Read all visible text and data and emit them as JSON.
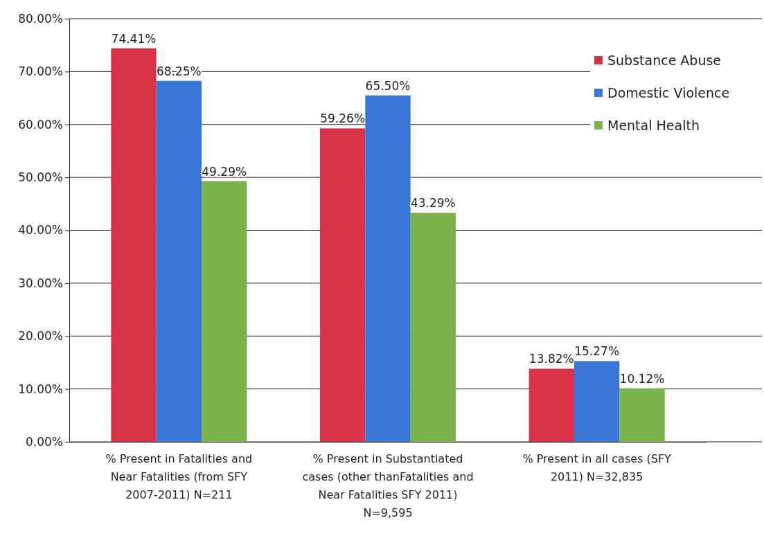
{
  "chart_data": {
    "type": "bar",
    "categories": [
      "% Present in Fatalities and Near Fatalities (from SFY 2007-2011) N=211",
      "% Present in Substantiated cases (other thanFatalities and Near Fatalities SFY 2011) N=9,595",
      "% Present in all cases (SFY 2011) N=32,835"
    ],
    "series": [
      {
        "name": "Substance Abuse",
        "color": "#d9334a",
        "values": [
          74.41,
          59.26,
          13.82
        ],
        "value_labels": [
          "74.41%",
          "59.26%",
          "13.82%"
        ]
      },
      {
        "name": "Domestic Violence",
        "color": "#3a78d8",
        "values": [
          68.25,
          65.5,
          15.27
        ],
        "value_labels": [
          "68.25%",
          "65.50%",
          "15.27%"
        ]
      },
      {
        "name": "Mental Health",
        "color": "#7cb24c",
        "values": [
          49.29,
          43.29,
          10.12
        ],
        "value_labels": [
          "49.29%",
          "43.29%",
          "10.12%"
        ]
      }
    ],
    "ylim": [
      0,
      80
    ],
    "yticks": [
      {
        "value": 0,
        "label": "0.00%"
      },
      {
        "value": 10,
        "label": "10.00%"
      },
      {
        "value": 20,
        "label": "20.00%"
      },
      {
        "value": 30,
        "label": "30.00%"
      },
      {
        "value": 40,
        "label": "40.00%"
      },
      {
        "value": 50,
        "label": "50.00%"
      },
      {
        "value": 60,
        "label": "60.00%"
      },
      {
        "value": 70,
        "label": "70.00%"
      },
      {
        "value": 80,
        "label": "80.00%"
      }
    ],
    "grid": "y",
    "legend": "top right"
  }
}
